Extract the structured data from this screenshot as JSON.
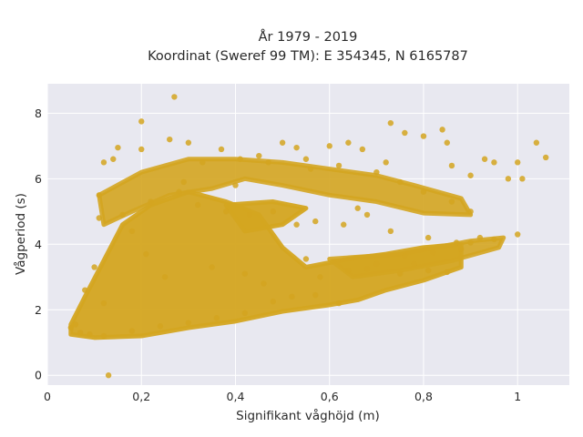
{
  "chart_data": {
    "type": "scatter",
    "title_line1": "År 1979 - 2019",
    "title_line2": "Koordinat (Sweref 99 TM): E 354345, N 6165787",
    "xlabel": "Signifikant våghöjd (m)",
    "ylabel": "Vågperiod (s)",
    "xlim": [
      0,
      1.11
    ],
    "ylim": [
      -0.3,
      8.9
    ],
    "x_ticks": [
      0,
      0.2,
      0.4,
      0.6,
      0.8,
      1
    ],
    "x_tick_labels": [
      "0",
      "0,2",
      "0,4",
      "0,6",
      "0,8",
      "1"
    ],
    "y_ticks": [
      0,
      2,
      4,
      6,
      8
    ],
    "y_tick_labels": [
      "0",
      "2",
      "4",
      "6",
      "8"
    ],
    "grid": true,
    "legend": "none",
    "colors": {
      "marker": "#d4a520",
      "plot_bg": "#e8e8f0",
      "grid": "#ffffff"
    },
    "series": [
      {
        "values_xy": [
          [
            0.27,
            8.5
          ],
          [
            0.2,
            7.75
          ],
          [
            0.13,
            0.0
          ],
          [
            0.05,
            1.45
          ],
          [
            0.06,
            1.55
          ],
          [
            0.08,
            2.6
          ],
          [
            0.1,
            3.3
          ],
          [
            0.11,
            4.8
          ],
          [
            0.11,
            5.5
          ],
          [
            0.12,
            6.5
          ],
          [
            0.14,
            6.6
          ],
          [
            0.15,
            6.95
          ],
          [
            0.2,
            6.9
          ],
          [
            0.26,
            7.2
          ],
          [
            0.3,
            7.1
          ],
          [
            0.37,
            6.9
          ],
          [
            0.41,
            6.6
          ],
          [
            0.45,
            6.7
          ],
          [
            0.5,
            7.1
          ],
          [
            0.53,
            6.95
          ],
          [
            0.55,
            6.6
          ],
          [
            0.6,
            7.0
          ],
          [
            0.64,
            7.1
          ],
          [
            0.67,
            6.9
          ],
          [
            0.72,
            6.5
          ],
          [
            0.73,
            7.7
          ],
          [
            0.76,
            7.4
          ],
          [
            0.8,
            7.3
          ],
          [
            0.84,
            7.5
          ],
          [
            0.85,
            7.1
          ],
          [
            0.86,
            6.4
          ],
          [
            0.9,
            6.1
          ],
          [
            0.93,
            6.6
          ],
          [
            0.95,
            6.5
          ],
          [
            0.98,
            6.0
          ],
          [
            1.0,
            6.5
          ],
          [
            1.01,
            6.0
          ],
          [
            1.04,
            7.1
          ],
          [
            1.06,
            6.65
          ],
          [
            0.9,
            5.0
          ],
          [
            0.86,
            5.3
          ],
          [
            0.8,
            5.6
          ],
          [
            0.75,
            5.9
          ],
          [
            0.7,
            6.2
          ],
          [
            0.62,
            6.4
          ],
          [
            0.56,
            6.3
          ],
          [
            0.47,
            6.5
          ],
          [
            0.43,
            4.9
          ],
          [
            0.48,
            5.0
          ],
          [
            0.53,
            4.6
          ],
          [
            0.57,
            4.7
          ],
          [
            0.63,
            4.6
          ],
          [
            0.68,
            4.9
          ],
          [
            0.73,
            4.4
          ],
          [
            0.81,
            4.2
          ],
          [
            0.87,
            4.05
          ],
          [
            0.92,
            4.2
          ],
          [
            0.95,
            4.15
          ],
          [
            1.0,
            4.3
          ],
          [
            0.9,
            4.05
          ],
          [
            0.85,
            3.15
          ],
          [
            0.81,
            3.2
          ],
          [
            0.78,
            3.4
          ],
          [
            0.75,
            3.1
          ],
          [
            0.7,
            3.4
          ],
          [
            0.68,
            3.25
          ],
          [
            0.62,
            2.2
          ],
          [
            0.57,
            2.45
          ],
          [
            0.52,
            2.4
          ],
          [
            0.48,
            2.25
          ],
          [
            0.42,
            1.9
          ],
          [
            0.36,
            1.75
          ],
          [
            0.3,
            1.6
          ],
          [
            0.24,
            1.5
          ],
          [
            0.18,
            1.35
          ],
          [
            0.12,
            1.2
          ],
          [
            0.09,
            1.25
          ],
          [
            0.07,
            1.3
          ],
          [
            0.12,
            2.2
          ],
          [
            0.16,
            4.9
          ],
          [
            0.22,
            5.3
          ],
          [
            0.28,
            5.6
          ],
          [
            0.32,
            5.2
          ],
          [
            0.38,
            5.0
          ],
          [
            0.4,
            5.8
          ],
          [
            0.33,
            6.5
          ],
          [
            0.29,
            5.9
          ],
          [
            0.18,
            4.4
          ],
          [
            0.21,
            3.7
          ],
          [
            0.25,
            3.0
          ],
          [
            0.35,
            3.3
          ],
          [
            0.42,
            3.1
          ],
          [
            0.46,
            2.8
          ],
          [
            0.58,
            3.0
          ],
          [
            0.64,
            3.2
          ],
          [
            0.82,
            3.75
          ],
          [
            0.88,
            3.85
          ],
          [
            0.76,
            3.65
          ],
          [
            0.55,
            3.55
          ],
          [
            0.66,
            5.1
          ]
        ]
      }
    ]
  }
}
